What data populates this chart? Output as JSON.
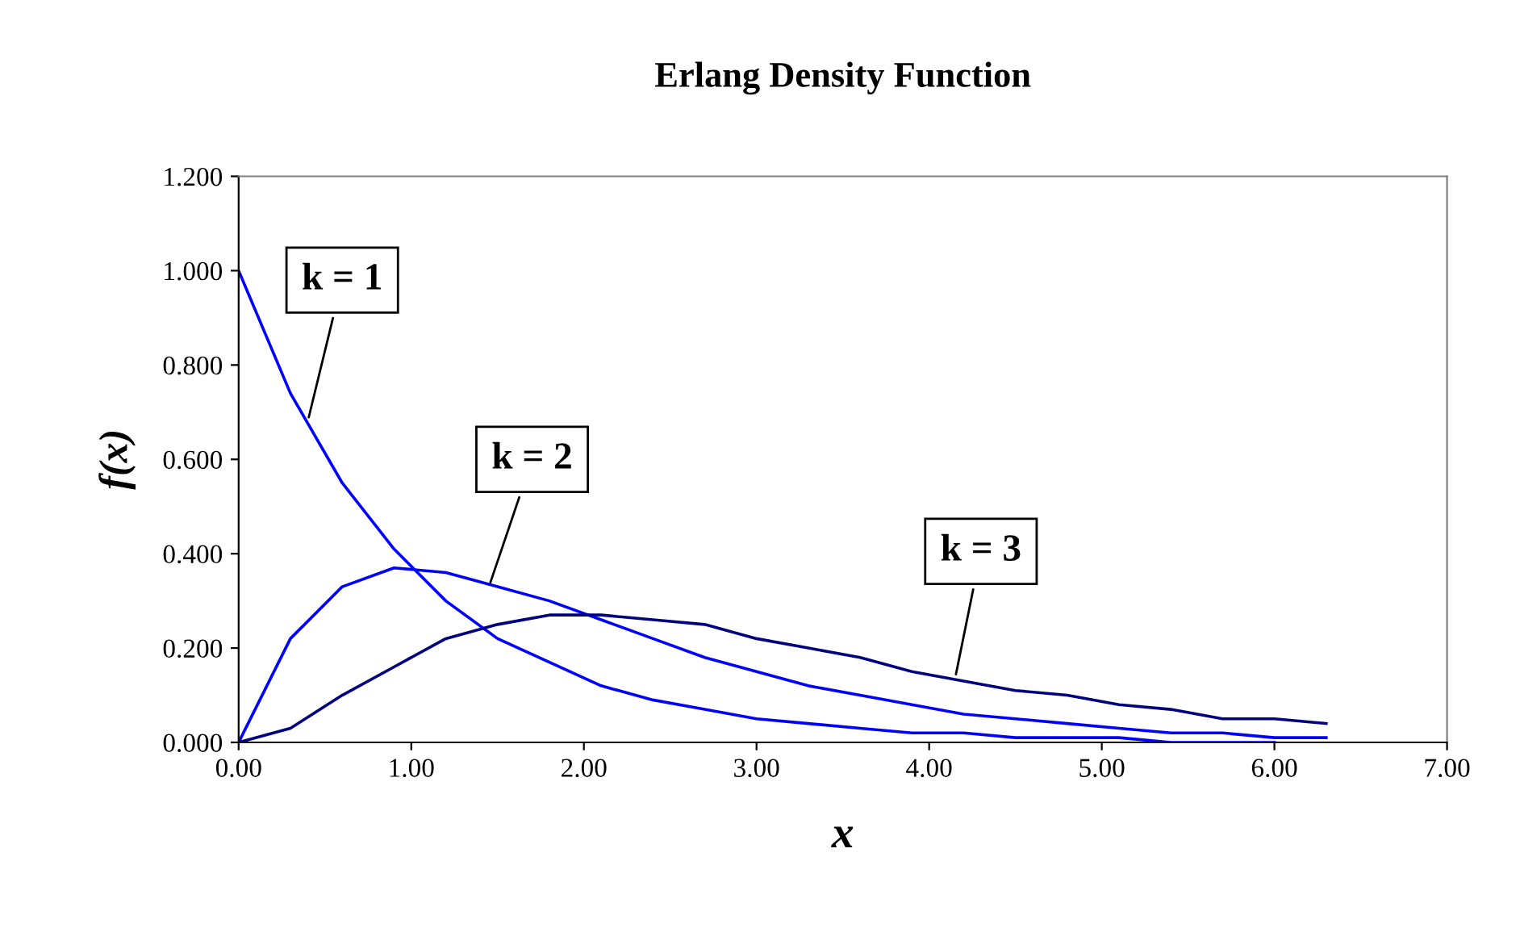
{
  "chart_data": {
    "type": "line",
    "title": "Erlang Density Function",
    "xlabel": "x",
    "ylabel": "f(x)",
    "series": [
      {
        "color": "#0000ff",
        "x": [
          0,
          0.3,
          0.6,
          0.9,
          1.2,
          1.5,
          1.8,
          2.1,
          2.4,
          2.7,
          3.0,
          3.3,
          3.6,
          3.9,
          4.2,
          4.5,
          4.8,
          5.1,
          5.4,
          5.7,
          6.0
        ],
        "values": [
          1.0,
          0.74,
          0.55,
          0.41,
          0.3,
          0.22,
          0.17,
          0.12,
          0.09,
          0.07,
          0.05,
          0.04,
          0.03,
          0.02,
          0.02,
          0.01,
          0.01,
          0.01,
          0.0,
          0.0,
          0.0
        ]
      },
      {
        "color": "#0000ff",
        "x": [
          0,
          0.3,
          0.6,
          0.9,
          1.2,
          1.5,
          1.8,
          2.1,
          2.4,
          2.7,
          3.0,
          3.3,
          3.6,
          3.9,
          4.2,
          4.5,
          4.8,
          5.1,
          5.4,
          5.7,
          6.0,
          6.3
        ],
        "values": [
          0.0,
          0.22,
          0.33,
          0.37,
          0.36,
          0.33,
          0.3,
          0.26,
          0.22,
          0.18,
          0.15,
          0.12,
          0.1,
          0.08,
          0.06,
          0.05,
          0.04,
          0.03,
          0.02,
          0.02,
          0.01,
          0.01
        ]
      },
      {
        "color": "#000080",
        "x": [
          0,
          0.3,
          0.6,
          0.9,
          1.2,
          1.5,
          1.8,
          2.1,
          2.4,
          2.7,
          3.0,
          3.3,
          3.6,
          3.9,
          4.2,
          4.5,
          4.8,
          5.1,
          5.4,
          5.7,
          6.0,
          6.3
        ],
        "values": [
          0.0,
          0.03,
          0.1,
          0.16,
          0.22,
          0.25,
          0.27,
          0.27,
          0.26,
          0.25,
          0.22,
          0.2,
          0.18,
          0.15,
          0.13,
          0.11,
          0.1,
          0.08,
          0.07,
          0.05,
          0.05,
          0.04
        ]
      }
    ],
    "annotations": [
      {
        "text": "k = 1",
        "x": 0.4,
        "y": 0.68
      },
      {
        "text": "k = 2",
        "x": 1.45,
        "y": 0.33
      },
      {
        "text": "k = 3",
        "x": 4.15,
        "y": 0.135
      }
    ],
    "xlim": [
      0,
      7
    ],
    "ylim": [
      0,
      1.2
    ],
    "xticks": [
      {
        "value": 0,
        "label": "0.00"
      },
      {
        "value": 1,
        "label": "1.00"
      },
      {
        "value": 2,
        "label": "2.00"
      },
      {
        "value": 3,
        "label": "3.00"
      },
      {
        "value": 4,
        "label": "4.00"
      },
      {
        "value": 5,
        "label": "5.00"
      },
      {
        "value": 6,
        "label": "6.00"
      },
      {
        "value": 7,
        "label": "7.00"
      }
    ],
    "yticks": [
      {
        "value": 0,
        "label": "0.000"
      },
      {
        "value": 0.2,
        "label": "0.200"
      },
      {
        "value": 0.4,
        "label": "0.400"
      },
      {
        "value": 0.6,
        "label": "0.600"
      },
      {
        "value": 0.8,
        "label": "0.800"
      },
      {
        "value": 1.0,
        "label": "1.000"
      },
      {
        "value": 1.2,
        "label": "1.200"
      }
    ],
    "grid": false,
    "legend": false
  }
}
